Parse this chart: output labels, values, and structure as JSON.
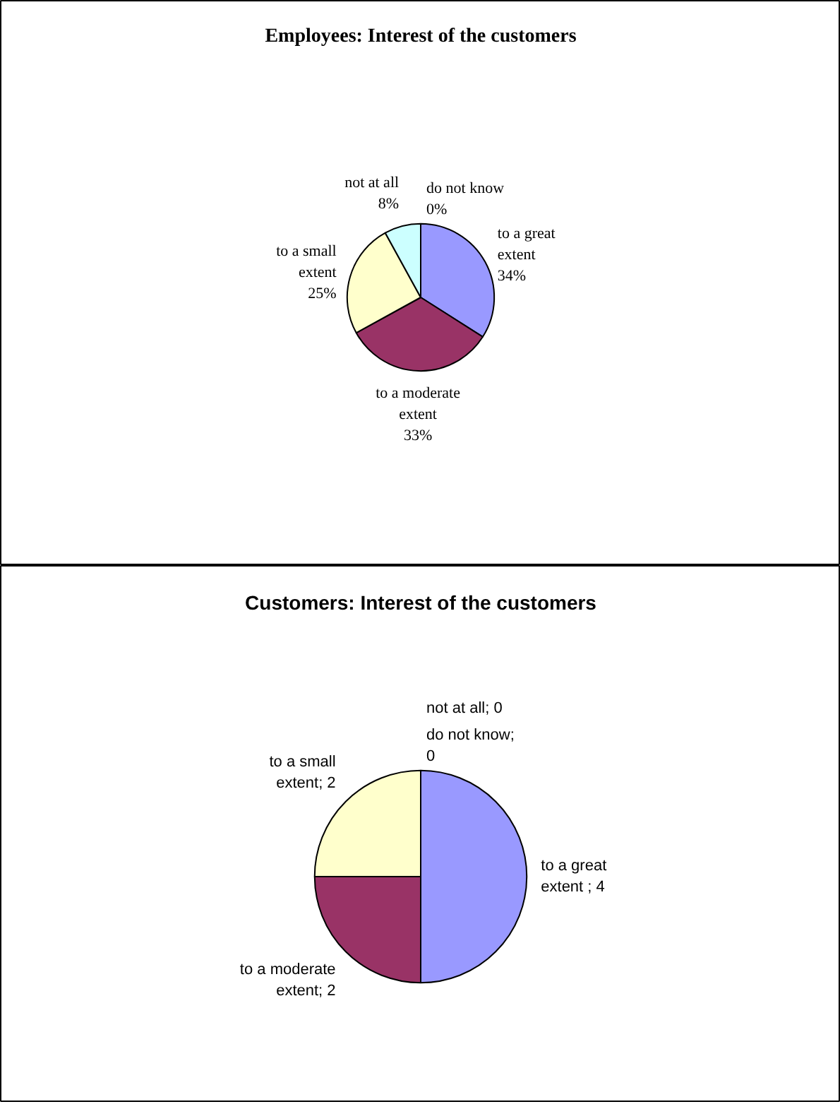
{
  "chart_data": [
    {
      "type": "pie",
      "title": "Employees: Interest of the customers",
      "categories": [
        "to a great extent",
        "to a moderate extent",
        "to a small extent",
        "not at all",
        "do not know"
      ],
      "values": [
        34,
        33,
        25,
        8,
        0
      ],
      "colors": [
        "#9999ff",
        "#993366",
        "#ffffcc",
        "#ccffff",
        "#660066"
      ],
      "value_labels": [
        "34%",
        "33%",
        "25%",
        "8%",
        "0%"
      ]
    },
    {
      "type": "pie",
      "title": "Customers: Interest of the customers",
      "categories": [
        "to a great extent",
        "to a moderate extent",
        "to a small extent",
        "not at all",
        "do not know"
      ],
      "values": [
        4,
        2,
        2,
        0,
        0
      ],
      "colors": [
        "#9999ff",
        "#993366",
        "#ffffcc",
        "#ccffff",
        "#660066"
      ],
      "value_labels": [
        " ; 4",
        "; 2",
        "; 2",
        "; 0",
        "; 0"
      ]
    }
  ]
}
